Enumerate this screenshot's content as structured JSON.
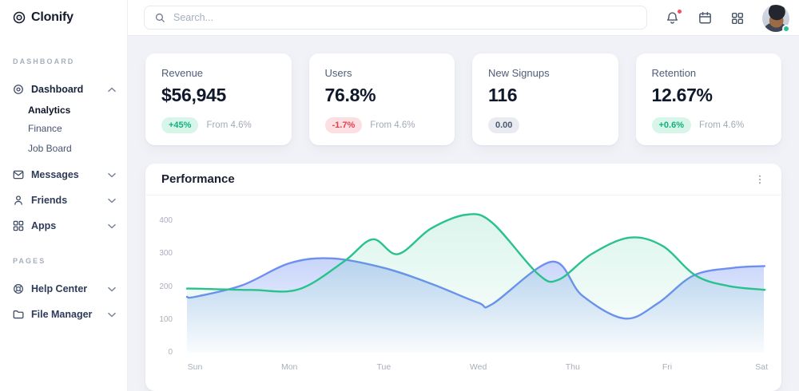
{
  "brand": {
    "name": "Clonify",
    "logo_icon": "clonify-logo-icon"
  },
  "topbar": {
    "search_placeholder": "Search...",
    "icons": [
      "bell-icon",
      "calendar-icon",
      "apps-grid-icon"
    ],
    "has_notification_dot": true,
    "avatar_status": "online"
  },
  "sidebar": {
    "sections": [
      {
        "label": "DASHBOARD",
        "items": [
          {
            "label": "Dashboard",
            "icon": "dashboard-icon",
            "chevron": "up",
            "children": [
              {
                "label": "Analytics",
                "active": true
              },
              {
                "label": "Finance",
                "active": false
              },
              {
                "label": "Job Board",
                "active": false
              }
            ]
          },
          {
            "label": "Messages",
            "icon": "messages-icon",
            "chevron": "down"
          },
          {
            "label": "Friends",
            "icon": "friends-icon",
            "chevron": "down"
          },
          {
            "label": "Apps",
            "icon": "apps-icon",
            "chevron": "down"
          }
        ]
      },
      {
        "label": "PAGES",
        "items": [
          {
            "label": "Help Center",
            "icon": "help-center-icon",
            "chevron": "down"
          },
          {
            "label": "File Manager",
            "icon": "file-manager-icon",
            "chevron": "down"
          }
        ]
      }
    ]
  },
  "stat_cards": [
    {
      "title": "Revenue",
      "value": "$56,945",
      "badge": "+45%",
      "badge_type": "positive",
      "note": "From 4.6%"
    },
    {
      "title": "Users",
      "value": "76.8%",
      "badge": "-1.7%",
      "badge_type": "negative",
      "note": "From 4.6%"
    },
    {
      "title": "New Signups",
      "value": "116",
      "badge": "0.00",
      "badge_type": "neutral",
      "note": ""
    },
    {
      "title": "Retention",
      "value": "12.67%",
      "badge": "+0.6%",
      "badge_type": "positive",
      "note": "From 4.6%"
    }
  ],
  "performance": {
    "title": "Performance",
    "menu_icon": "kebab-icon"
  },
  "chart_data": {
    "type": "area",
    "title": "Performance",
    "xlabel": "",
    "ylabel": "",
    "categories": [
      "Sun",
      "Mon",
      "Tue",
      "Wed",
      "Thu",
      "Fri",
      "Sat"
    ],
    "y_ticks": [
      0,
      100,
      200,
      300,
      400
    ],
    "ylim": [
      0,
      465
    ],
    "grid": false,
    "legend": "none",
    "series": [
      {
        "name": "series-blue",
        "color": "#6e8ff2",
        "fill_from": "rgba(110,143,242,0.38)",
        "fill_to": "rgba(110,143,242,0.02)",
        "points": [
          [
            0,
            170
          ],
          [
            0.5,
            205
          ],
          [
            1,
            272
          ],
          [
            1.45,
            287
          ],
          [
            2,
            258
          ],
          [
            2.5,
            210
          ],
          [
            3,
            152
          ],
          [
            3.15,
            148
          ],
          [
            3.78,
            277
          ],
          [
            4.1,
            174
          ],
          [
            4.55,
            104
          ],
          [
            4.9,
            150
          ],
          [
            5.28,
            235
          ],
          [
            5.7,
            258
          ],
          [
            6,
            263
          ]
        ]
      },
      {
        "name": "series-green",
        "color": "#2ac28c",
        "fill_from": "rgba(42,194,140,0.17)",
        "fill_to": "rgba(42,194,140,0.01)",
        "points": [
          [
            0,
            195
          ],
          [
            0.6,
            191
          ],
          [
            1.1,
            193
          ],
          [
            1.58,
            278
          ],
          [
            1.88,
            345
          ],
          [
            2.15,
            300
          ],
          [
            2.5,
            378
          ],
          [
            2.88,
            420
          ],
          [
            3.15,
            395
          ],
          [
            3.63,
            240
          ],
          [
            3.85,
            222
          ],
          [
            4.2,
            300
          ],
          [
            4.6,
            350
          ],
          [
            4.95,
            325
          ],
          [
            5.3,
            235
          ],
          [
            5.65,
            203
          ],
          [
            6,
            192
          ]
        ]
      }
    ]
  }
}
